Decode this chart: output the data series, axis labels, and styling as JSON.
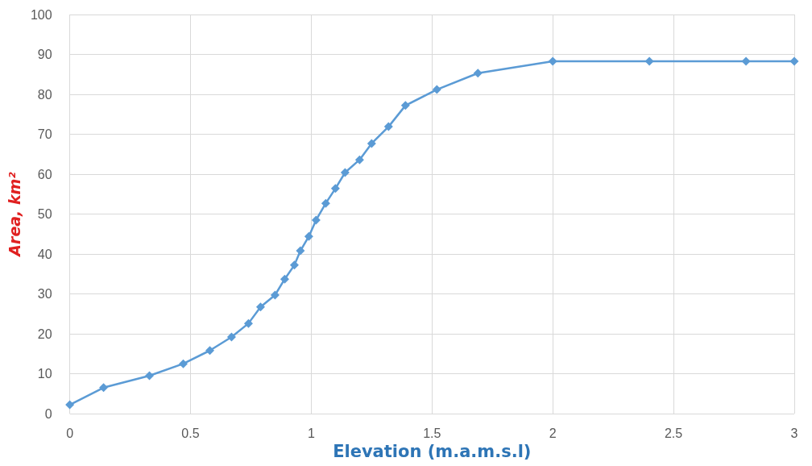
{
  "chart_data": {
    "type": "line",
    "xlabel": "Elevation (m.a.m.s.l)",
    "ylabel": "Area, km²",
    "x": [
      0,
      0.14,
      0.33,
      0.47,
      0.58,
      0.67,
      0.74,
      0.79,
      0.85,
      0.89,
      0.93,
      0.955,
      0.99,
      1.02,
      1.06,
      1.1,
      1.14,
      1.2,
      1.25,
      1.32,
      1.39,
      1.52,
      1.69,
      2.0,
      2.4,
      2.8,
      3.0
    ],
    "series": [
      {
        "color": "#5b9bd5",
        "values": [
          2.2,
          6.5,
          9.5,
          12.5,
          15.8,
          19.2,
          22.6,
          26.7,
          29.7,
          33.7,
          37.2,
          40.8,
          44.4,
          48.5,
          52.7,
          56.4,
          60.4,
          63.6,
          67.7,
          71.9,
          77.2,
          81.2,
          85.3,
          88.3,
          88.3,
          88.3,
          88.3
        ]
      }
    ],
    "xlim": [
      0,
      3
    ],
    "xticks": [
      0,
      0.5,
      1,
      1.5,
      2,
      2.5,
      3
    ],
    "ylim": [
      0,
      100
    ],
    "yticks": [
      0,
      10,
      20,
      30,
      40,
      50,
      60,
      70,
      80,
      90,
      100
    ],
    "grid": true,
    "marker": "diamond",
    "line_style": "solid"
  }
}
